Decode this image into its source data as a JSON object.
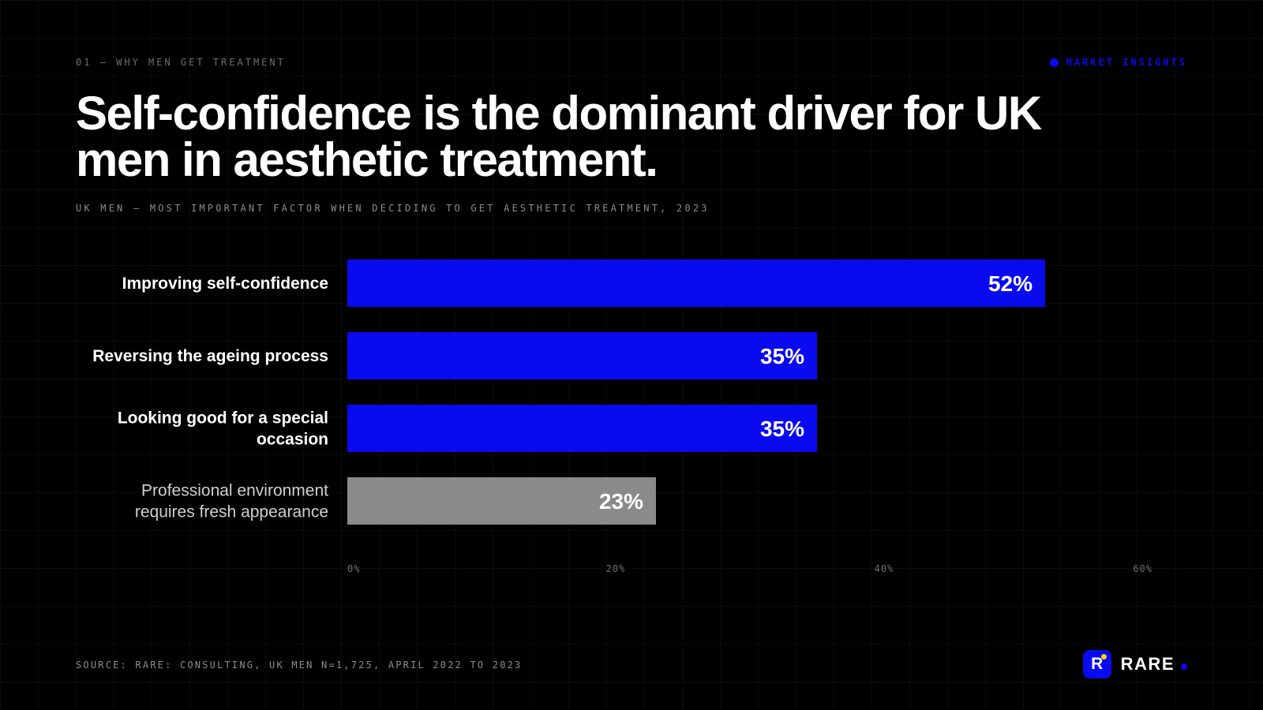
{
  "header": {
    "eyebrow": "01 — WHY MEN GET TREATMENT",
    "tag": "MARKET INSIGHTS",
    "title": "Self-confidence is the dominant driver for UK men in aesthetic treatment.",
    "subtitle": "UK MEN — MOST IMPORTANT FACTOR WHEN DECIDING TO GET AESTHETIC TREATMENT, 2023"
  },
  "footer": {
    "source": "SOURCE: RARE: CONSULTING, UK MEN N=1,725, APRIL 2022 TO 2023",
    "brand_letter": "R",
    "brand_name": "RARE"
  },
  "colors": {
    "accent": "#0a0af0",
    "muted_bar": "#8a8a8a",
    "background": "#000000",
    "text": "#ffffff",
    "muted_text": "#cfcfcf",
    "tick_text": "#6f6f6f"
  },
  "chart_data": {
    "type": "bar",
    "orientation": "horizontal",
    "categories": [
      [
        "Improving self-confidence"
      ],
      [
        "Reversing the ageing process"
      ],
      [
        "Looking good for a special",
        "occasion"
      ],
      [
        "Professional environment",
        "requires fresh appearance"
      ]
    ],
    "values": [
      52,
      35,
      35,
      23
    ],
    "value_labels": [
      "52%",
      "35%",
      "35%",
      "23%"
    ],
    "highlight": [
      true,
      true,
      true,
      false
    ],
    "xlim": [
      0,
      60
    ],
    "xticks": [
      0,
      20,
      40,
      60
    ],
    "xtick_labels": [
      "0%",
      "20%",
      "40%",
      "60%"
    ],
    "unit": "%"
  }
}
